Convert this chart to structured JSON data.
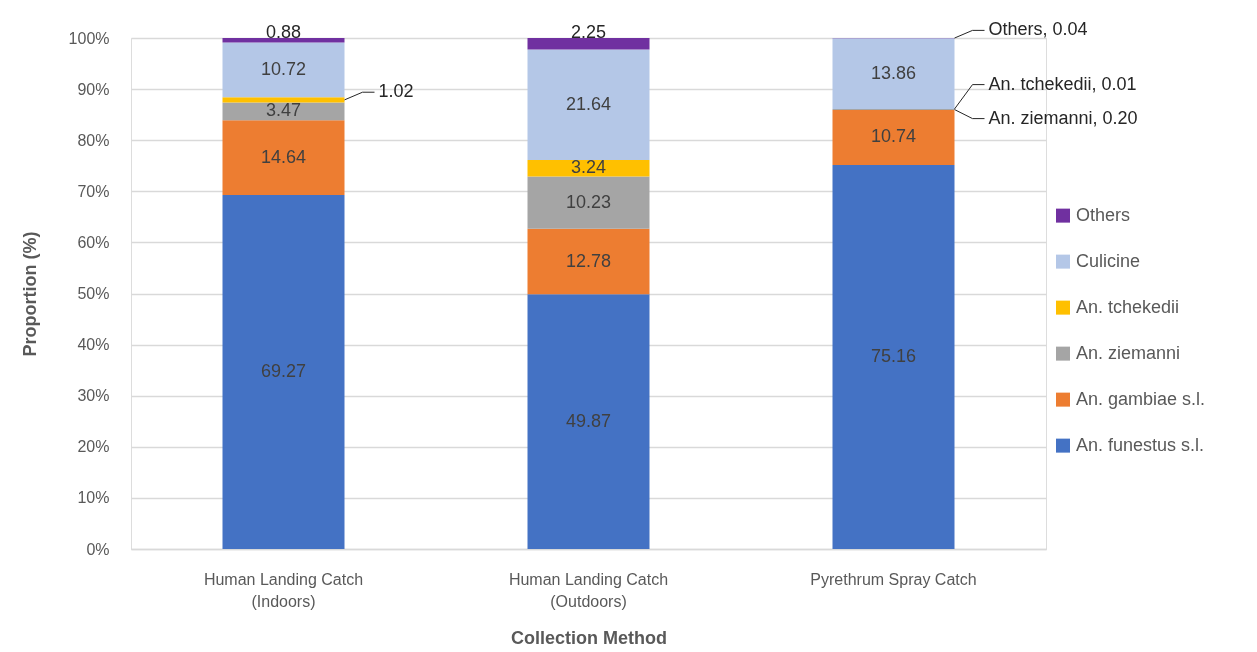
{
  "chart_data": {
    "type": "bar",
    "stacked": true,
    "xlabel": "Collection Method",
    "ylabel": "Proportion (%)",
    "categories": [
      "Human Landing Catch (Indoors)",
      "Human Landing Catch (Outdoors)",
      "Pyrethrum Spray Catch"
    ],
    "series": [
      {
        "name": "An. funestus s.l.",
        "color": "#4472c4",
        "values": [
          69.27,
          49.87,
          75.16
        ],
        "value_labels": [
          "69.27",
          "49.87",
          "75.16"
        ]
      },
      {
        "name": "An. gambiae s.l.",
        "color": "#ed7d31",
        "values": [
          14.64,
          12.78,
          10.74
        ],
        "value_labels": [
          "14.64",
          "12.78",
          "10.74"
        ]
      },
      {
        "name": "An. ziemanni",
        "color": "#a5a5a5",
        "values": [
          3.47,
          10.23,
          0.2
        ],
        "value_labels": [
          "3.47",
          "10.23",
          "An. ziemanni, 0.20"
        ]
      },
      {
        "name": "An. tchekedii",
        "color": "#ffc000",
        "values": [
          1.02,
          3.24,
          0.01
        ],
        "value_labels": [
          "1.02",
          "3.24",
          "An. tchekedii, 0.01"
        ]
      },
      {
        "name": "Culicine",
        "color": "#b4c7e7",
        "values": [
          10.72,
          21.64,
          13.86
        ],
        "value_labels": [
          "10.72",
          "21.64",
          "13.86"
        ]
      },
      {
        "name": "Others",
        "color": "#7030a0",
        "values": [
          0.88,
          2.25,
          0.04
        ],
        "value_labels": [
          "0.88",
          "2.25",
          "Others, 0.04"
        ]
      }
    ],
    "ylim": [
      0,
      100
    ],
    "yticks": [
      {
        "value": 0,
        "label": "0%"
      },
      {
        "value": 10,
        "label": "10%"
      },
      {
        "value": 20,
        "label": "20%"
      },
      {
        "value": 30,
        "label": "30%"
      },
      {
        "value": 40,
        "label": "40%"
      },
      {
        "value": 50,
        "label": "50%"
      },
      {
        "value": 60,
        "label": "60%"
      },
      {
        "value": 70,
        "label": "70%"
      },
      {
        "value": 80,
        "label": "80%"
      },
      {
        "value": 90,
        "label": "90%"
      },
      {
        "value": 100,
        "label": "100%"
      }
    ],
    "grid": "y",
    "legend": "right"
  }
}
